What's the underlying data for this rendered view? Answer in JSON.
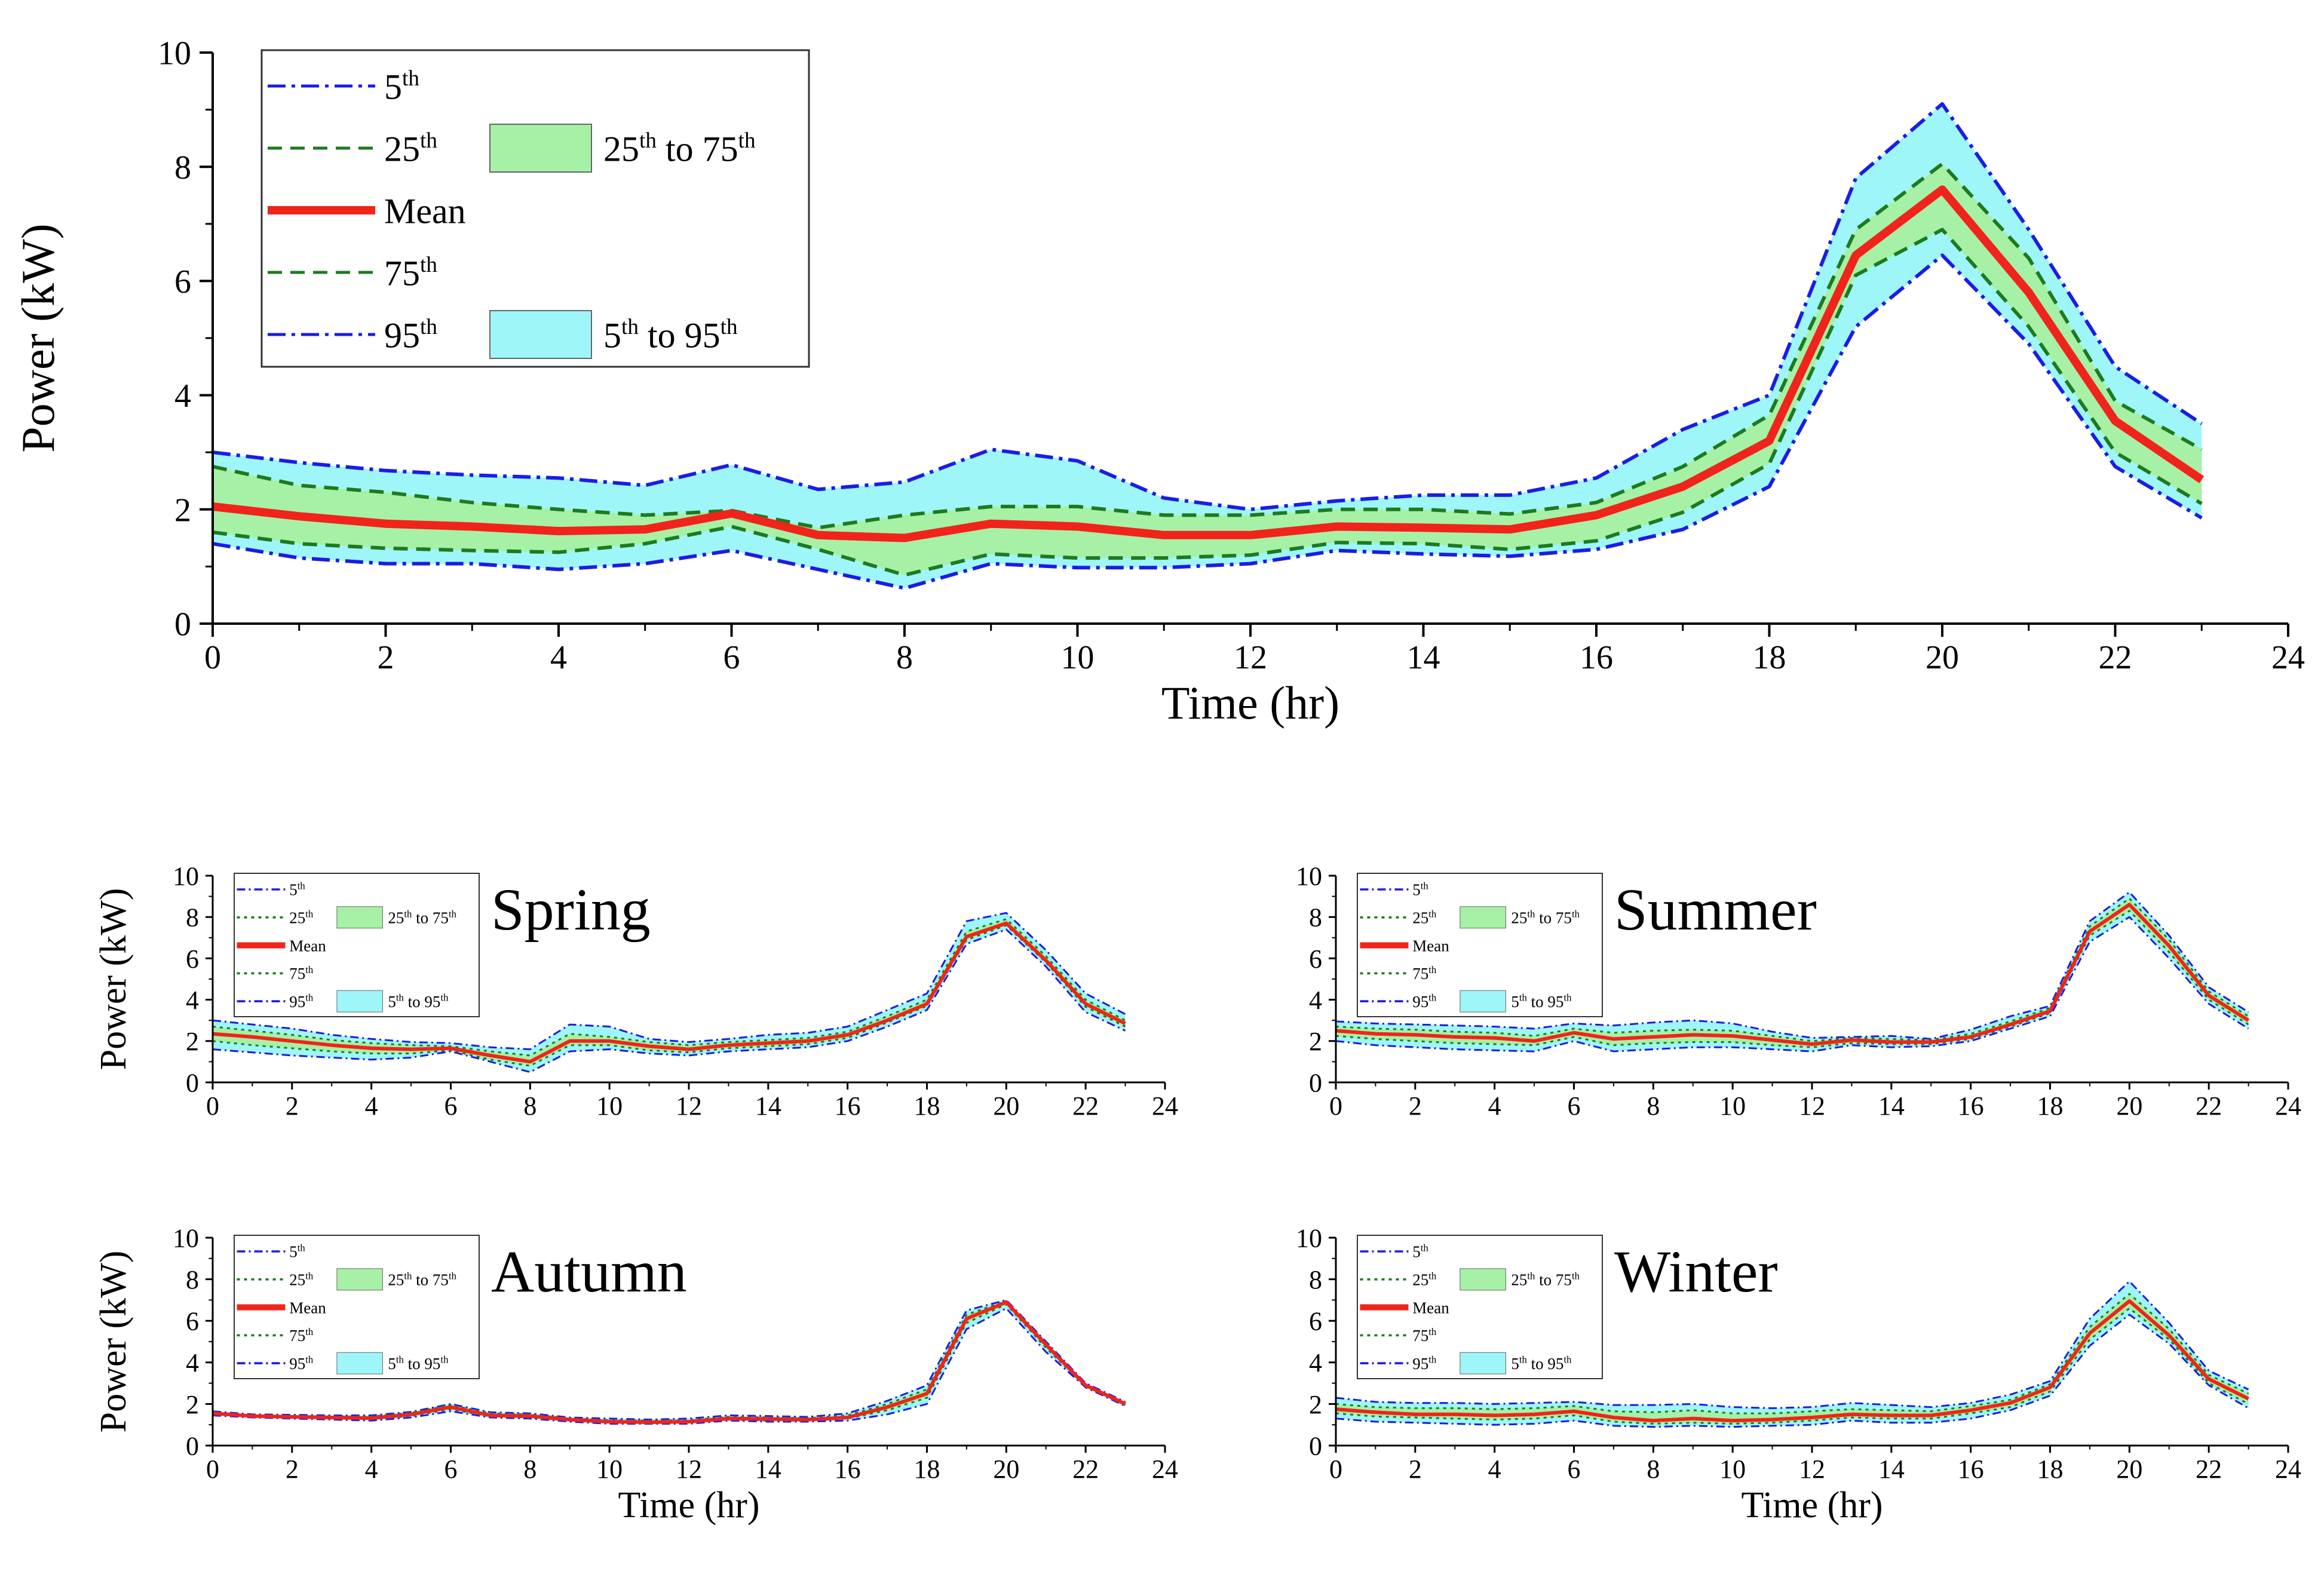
{
  "colors": {
    "band_5_95": "#9ff6f9",
    "band_25_75": "#a6f1a6",
    "line_5_95": "#1c1ce6",
    "line_25_75": "#1e7a1e",
    "line_mean": "#f0241b",
    "axis": "#000000"
  },
  "legend_labels": {
    "p5": "5",
    "p25": "25",
    "mean": "Mean",
    "p75": "75",
    "p95": "95",
    "th": "th",
    "band_25_75_a": "25",
    "band_25_75_b": " to 75",
    "band_5_95_a": "5",
    "band_5_95_b": " to 95"
  },
  "chart_data": [
    {
      "id": "main",
      "type": "line",
      "title": "",
      "xlabel": "Time (hr)",
      "ylabel": "Power (kW)",
      "xlim": [
        0,
        24
      ],
      "ylim": [
        0,
        10
      ],
      "xticks": [
        0,
        2,
        4,
        6,
        8,
        10,
        12,
        14,
        16,
        18,
        20,
        22,
        24
      ],
      "yticks": [
        0,
        2,
        4,
        6,
        8,
        10
      ],
      "x": [
        0,
        1,
        2,
        3,
        4,
        5,
        6,
        7,
        8,
        9,
        10,
        11,
        12,
        13,
        14,
        15,
        16,
        17,
        18,
        19,
        20,
        21,
        22,
        23
      ],
      "series": [
        {
          "name": "5th",
          "values": [
            1.4,
            1.15,
            1.05,
            1.05,
            0.95,
            1.05,
            1.28,
            0.95,
            0.62,
            1.05,
            0.98,
            0.98,
            1.05,
            1.28,
            1.22,
            1.18,
            1.3,
            1.65,
            2.4,
            5.2,
            6.45,
            4.9,
            2.75,
            1.85
          ]
        },
        {
          "name": "25th",
          "values": [
            1.6,
            1.4,
            1.32,
            1.28,
            1.25,
            1.4,
            1.7,
            1.3,
            0.85,
            1.22,
            1.15,
            1.15,
            1.2,
            1.42,
            1.4,
            1.3,
            1.45,
            1.95,
            2.8,
            6.1,
            6.9,
            5.2,
            3.0,
            2.1
          ]
        },
        {
          "name": "Mean",
          "values": [
            2.05,
            1.88,
            1.75,
            1.7,
            1.62,
            1.65,
            1.93,
            1.55,
            1.5,
            1.75,
            1.7,
            1.55,
            1.55,
            1.7,
            1.68,
            1.65,
            1.9,
            2.4,
            3.2,
            6.45,
            7.6,
            5.8,
            3.55,
            2.52
          ]
        },
        {
          "name": "75th",
          "values": [
            2.75,
            2.42,
            2.3,
            2.12,
            2.0,
            1.9,
            1.98,
            1.68,
            1.9,
            2.05,
            2.05,
            1.9,
            1.9,
            2.0,
            2.0,
            1.92,
            2.12,
            2.75,
            3.65,
            6.9,
            8.05,
            6.4,
            3.9,
            3.05
          ]
        },
        {
          "name": "95th",
          "values": [
            3.0,
            2.82,
            2.68,
            2.6,
            2.55,
            2.42,
            2.78,
            2.35,
            2.48,
            3.05,
            2.85,
            2.2,
            2.0,
            2.15,
            2.25,
            2.25,
            2.55,
            3.4,
            4.0,
            7.8,
            9.1,
            6.9,
            4.5,
            3.5
          ]
        }
      ],
      "legend": [
        "5th",
        "25th",
        "Mean",
        "75th",
        "95th",
        "25th to 75th",
        "5th to 95th"
      ]
    },
    {
      "id": "spring",
      "type": "line",
      "title": "Spring",
      "xlabel": "",
      "ylabel": "Power (kW)",
      "xlim": [
        0,
        24
      ],
      "ylim": [
        0,
        10
      ],
      "xticks": [
        0,
        2,
        4,
        6,
        8,
        10,
        12,
        14,
        16,
        18,
        20,
        22,
        24
      ],
      "yticks": [
        0,
        2,
        4,
        6,
        8,
        10
      ],
      "x": [
        0,
        1,
        2,
        3,
        4,
        5,
        6,
        7,
        8,
        9,
        10,
        11,
        12,
        13,
        14,
        15,
        16,
        17,
        18,
        19,
        20,
        21,
        22,
        23
      ],
      "series": [
        {
          "name": "5th",
          "values": [
            1.6,
            1.45,
            1.3,
            1.2,
            1.1,
            1.2,
            1.5,
            1.0,
            0.5,
            1.5,
            1.6,
            1.4,
            1.3,
            1.5,
            1.6,
            1.7,
            2.0,
            2.7,
            3.5,
            6.7,
            7.4,
            5.6,
            3.4,
            2.5
          ]
        },
        {
          "name": "25th",
          "values": [
            2.0,
            1.8,
            1.65,
            1.5,
            1.4,
            1.4,
            1.55,
            1.1,
            0.8,
            1.8,
            1.8,
            1.55,
            1.45,
            1.65,
            1.75,
            1.85,
            2.15,
            2.9,
            3.7,
            6.9,
            7.6,
            5.8,
            3.65,
            2.7
          ]
        },
        {
          "name": "Mean",
          "values": [
            2.35,
            2.2,
            2.0,
            1.8,
            1.65,
            1.6,
            1.65,
            1.3,
            1.0,
            2.0,
            2.0,
            1.75,
            1.6,
            1.8,
            1.9,
            2.0,
            2.3,
            3.0,
            3.8,
            7.05,
            7.7,
            5.9,
            3.8,
            2.85
          ]
        },
        {
          "name": "75th",
          "values": [
            2.7,
            2.5,
            2.3,
            2.05,
            1.9,
            1.8,
            1.75,
            1.5,
            1.3,
            2.35,
            2.2,
            1.95,
            1.8,
            1.95,
            2.05,
            2.15,
            2.45,
            3.2,
            4.0,
            7.3,
            7.9,
            6.1,
            4.0,
            3.0
          ]
        },
        {
          "name": "95th",
          "values": [
            3.0,
            2.8,
            2.6,
            2.3,
            2.1,
            1.95,
            1.9,
            1.7,
            1.6,
            2.8,
            2.7,
            2.1,
            1.95,
            2.1,
            2.3,
            2.4,
            2.7,
            3.5,
            4.3,
            7.8,
            8.2,
            6.4,
            4.3,
            3.3
          ]
        }
      ],
      "legend": [
        "5th",
        "25th",
        "Mean",
        "75th",
        "95th",
        "25th to 75th",
        "5th to 95th"
      ]
    },
    {
      "id": "summer",
      "type": "line",
      "title": "Summer",
      "xlabel": "",
      "ylabel": "",
      "xlim": [
        0,
        24
      ],
      "ylim": [
        0,
        10
      ],
      "xticks": [
        0,
        2,
        4,
        6,
        8,
        10,
        12,
        14,
        16,
        18,
        20,
        22,
        24
      ],
      "yticks": [
        0,
        2,
        4,
        6,
        8,
        10
      ],
      "x": [
        0,
        1,
        2,
        3,
        4,
        5,
        6,
        7,
        8,
        9,
        10,
        11,
        12,
        13,
        14,
        15,
        16,
        17,
        18,
        19,
        20,
        21,
        22,
        23
      ],
      "series": [
        {
          "name": "5th",
          "values": [
            2.0,
            1.8,
            1.7,
            1.6,
            1.55,
            1.5,
            2.0,
            1.5,
            1.6,
            1.7,
            1.7,
            1.6,
            1.5,
            1.8,
            1.7,
            1.75,
            2.0,
            2.6,
            3.2,
            6.8,
            8.0,
            6.0,
            3.8,
            2.6
          ]
        },
        {
          "name": "25th",
          "values": [
            2.25,
            2.1,
            2.0,
            1.9,
            1.85,
            1.8,
            2.2,
            1.8,
            1.9,
            1.95,
            1.95,
            1.8,
            1.7,
            1.9,
            1.85,
            1.85,
            2.1,
            2.7,
            3.35,
            7.1,
            8.3,
            6.3,
            4.0,
            2.8
          ]
        },
        {
          "name": "Mean",
          "values": [
            2.5,
            2.35,
            2.3,
            2.2,
            2.15,
            2.0,
            2.4,
            2.1,
            2.2,
            2.3,
            2.25,
            2.05,
            1.85,
            2.05,
            1.95,
            1.95,
            2.2,
            2.8,
            3.45,
            7.3,
            8.6,
            6.6,
            4.2,
            3.0
          ]
        },
        {
          "name": "75th",
          "values": [
            2.7,
            2.6,
            2.55,
            2.45,
            2.4,
            2.25,
            2.6,
            2.4,
            2.5,
            2.55,
            2.5,
            2.25,
            2.0,
            2.15,
            2.1,
            2.05,
            2.35,
            2.95,
            3.6,
            7.55,
            8.9,
            6.9,
            4.4,
            3.2
          ]
        },
        {
          "name": "95th",
          "values": [
            2.95,
            2.85,
            2.8,
            2.75,
            2.7,
            2.6,
            2.85,
            2.75,
            2.9,
            3.0,
            2.85,
            2.45,
            2.15,
            2.2,
            2.25,
            2.1,
            2.55,
            3.2,
            3.7,
            7.8,
            9.2,
            7.1,
            4.6,
            3.4
          ]
        }
      ],
      "legend": [
        "5th",
        "25th",
        "Mean",
        "75th",
        "95th",
        "25th to 75th",
        "5th to 95th"
      ]
    },
    {
      "id": "autumn",
      "type": "line",
      "title": "Autumn",
      "xlabel": "Time (hr)",
      "ylabel": "Power (kW)",
      "xlim": [
        0,
        24
      ],
      "ylim": [
        0,
        10
      ],
      "xticks": [
        0,
        2,
        4,
        6,
        8,
        10,
        12,
        14,
        16,
        18,
        20,
        22,
        24
      ],
      "yticks": [
        0,
        2,
        4,
        6,
        8,
        10
      ],
      "x": [
        0,
        1,
        2,
        3,
        4,
        5,
        6,
        7,
        8,
        9,
        10,
        11,
        12,
        13,
        14,
        15,
        16,
        17,
        18,
        19,
        20,
        21,
        22,
        23
      ],
      "series": [
        {
          "name": "5th",
          "values": [
            1.45,
            1.35,
            1.3,
            1.25,
            1.2,
            1.35,
            1.65,
            1.35,
            1.3,
            1.15,
            1.05,
            1.05,
            1.05,
            1.2,
            1.15,
            1.15,
            1.2,
            1.5,
            2.0,
            5.6,
            6.6,
            4.5,
            2.8,
            1.9
          ]
        },
        {
          "name": "25th",
          "values": [
            1.5,
            1.4,
            1.35,
            1.3,
            1.28,
            1.42,
            1.75,
            1.4,
            1.35,
            1.2,
            1.1,
            1.1,
            1.1,
            1.25,
            1.2,
            1.2,
            1.3,
            1.7,
            2.3,
            5.9,
            6.8,
            4.7,
            2.85,
            1.95
          ]
        },
        {
          "name": "Mean",
          "values": [
            1.55,
            1.42,
            1.38,
            1.35,
            1.32,
            1.5,
            1.85,
            1.45,
            1.42,
            1.25,
            1.15,
            1.12,
            1.15,
            1.3,
            1.28,
            1.25,
            1.35,
            1.85,
            2.5,
            6.1,
            6.9,
            4.85,
            2.9,
            2.0
          ]
        },
        {
          "name": "75th",
          "values": [
            1.6,
            1.45,
            1.42,
            1.4,
            1.4,
            1.58,
            1.95,
            1.55,
            1.5,
            1.3,
            1.22,
            1.2,
            1.22,
            1.38,
            1.35,
            1.32,
            1.45,
            2.0,
            2.7,
            6.3,
            6.95,
            4.95,
            2.95,
            2.05
          ]
        },
        {
          "name": "95th",
          "values": [
            1.65,
            1.5,
            1.48,
            1.45,
            1.45,
            1.62,
            2.0,
            1.6,
            1.55,
            1.35,
            1.3,
            1.25,
            1.3,
            1.45,
            1.42,
            1.38,
            1.55,
            2.15,
            2.9,
            6.5,
            7.0,
            5.0,
            3.0,
            2.1
          ]
        }
      ],
      "legend": [
        "5th",
        "25th",
        "Mean",
        "75th",
        "95th",
        "25th to 75th",
        "5th to 95th"
      ]
    },
    {
      "id": "winter",
      "type": "line",
      "title": "Winter",
      "xlabel": "Time (hr)",
      "ylabel": "",
      "xlim": [
        0,
        24
      ],
      "ylim": [
        0,
        10
      ],
      "xticks": [
        0,
        2,
        4,
        6,
        8,
        10,
        12,
        14,
        16,
        18,
        20,
        22,
        24
      ],
      "yticks": [
        0,
        2,
        4,
        6,
        8,
        10
      ],
      "x": [
        0,
        1,
        2,
        3,
        4,
        5,
        6,
        7,
        8,
        9,
        10,
        11,
        12,
        13,
        14,
        15,
        16,
        17,
        18,
        19,
        20,
        21,
        22,
        23
      ],
      "series": [
        {
          "name": "5th",
          "values": [
            1.3,
            1.15,
            1.1,
            1.05,
            1.0,
            1.05,
            1.2,
            0.95,
            0.9,
            0.95,
            0.9,
            0.95,
            1.0,
            1.2,
            1.1,
            1.1,
            1.3,
            1.7,
            2.4,
            4.8,
            6.3,
            4.9,
            2.9,
            1.8
          ]
        },
        {
          "name": "25th",
          "values": [
            1.55,
            1.4,
            1.35,
            1.3,
            1.25,
            1.3,
            1.45,
            1.15,
            1.05,
            1.1,
            1.05,
            1.1,
            1.2,
            1.35,
            1.3,
            1.3,
            1.55,
            1.85,
            2.6,
            5.1,
            6.6,
            5.1,
            3.0,
            2.0
          ]
        },
        {
          "name": "Mean",
          "values": [
            1.75,
            1.6,
            1.5,
            1.5,
            1.45,
            1.5,
            1.65,
            1.35,
            1.2,
            1.3,
            1.2,
            1.25,
            1.35,
            1.5,
            1.45,
            1.45,
            1.7,
            2.05,
            2.8,
            5.4,
            6.95,
            5.3,
            3.2,
            2.25
          ]
        },
        {
          "name": "75th",
          "values": [
            2.0,
            1.85,
            1.8,
            1.8,
            1.75,
            1.8,
            1.9,
            1.65,
            1.6,
            1.7,
            1.55,
            1.55,
            1.65,
            1.75,
            1.7,
            1.65,
            1.9,
            2.2,
            2.95,
            5.7,
            7.3,
            5.6,
            3.4,
            2.5
          ]
        },
        {
          "name": "95th",
          "values": [
            2.3,
            2.1,
            2.05,
            2.05,
            2.0,
            2.05,
            2.1,
            1.95,
            1.95,
            2.0,
            1.85,
            1.8,
            1.85,
            2.05,
            1.95,
            1.85,
            2.05,
            2.45,
            3.1,
            6.1,
            7.9,
            5.9,
            3.6,
            2.7
          ]
        }
      ],
      "legend": [
        "5th",
        "25th",
        "Mean",
        "75th",
        "95th",
        "25th to 75th",
        "5th to 95th"
      ]
    }
  ]
}
